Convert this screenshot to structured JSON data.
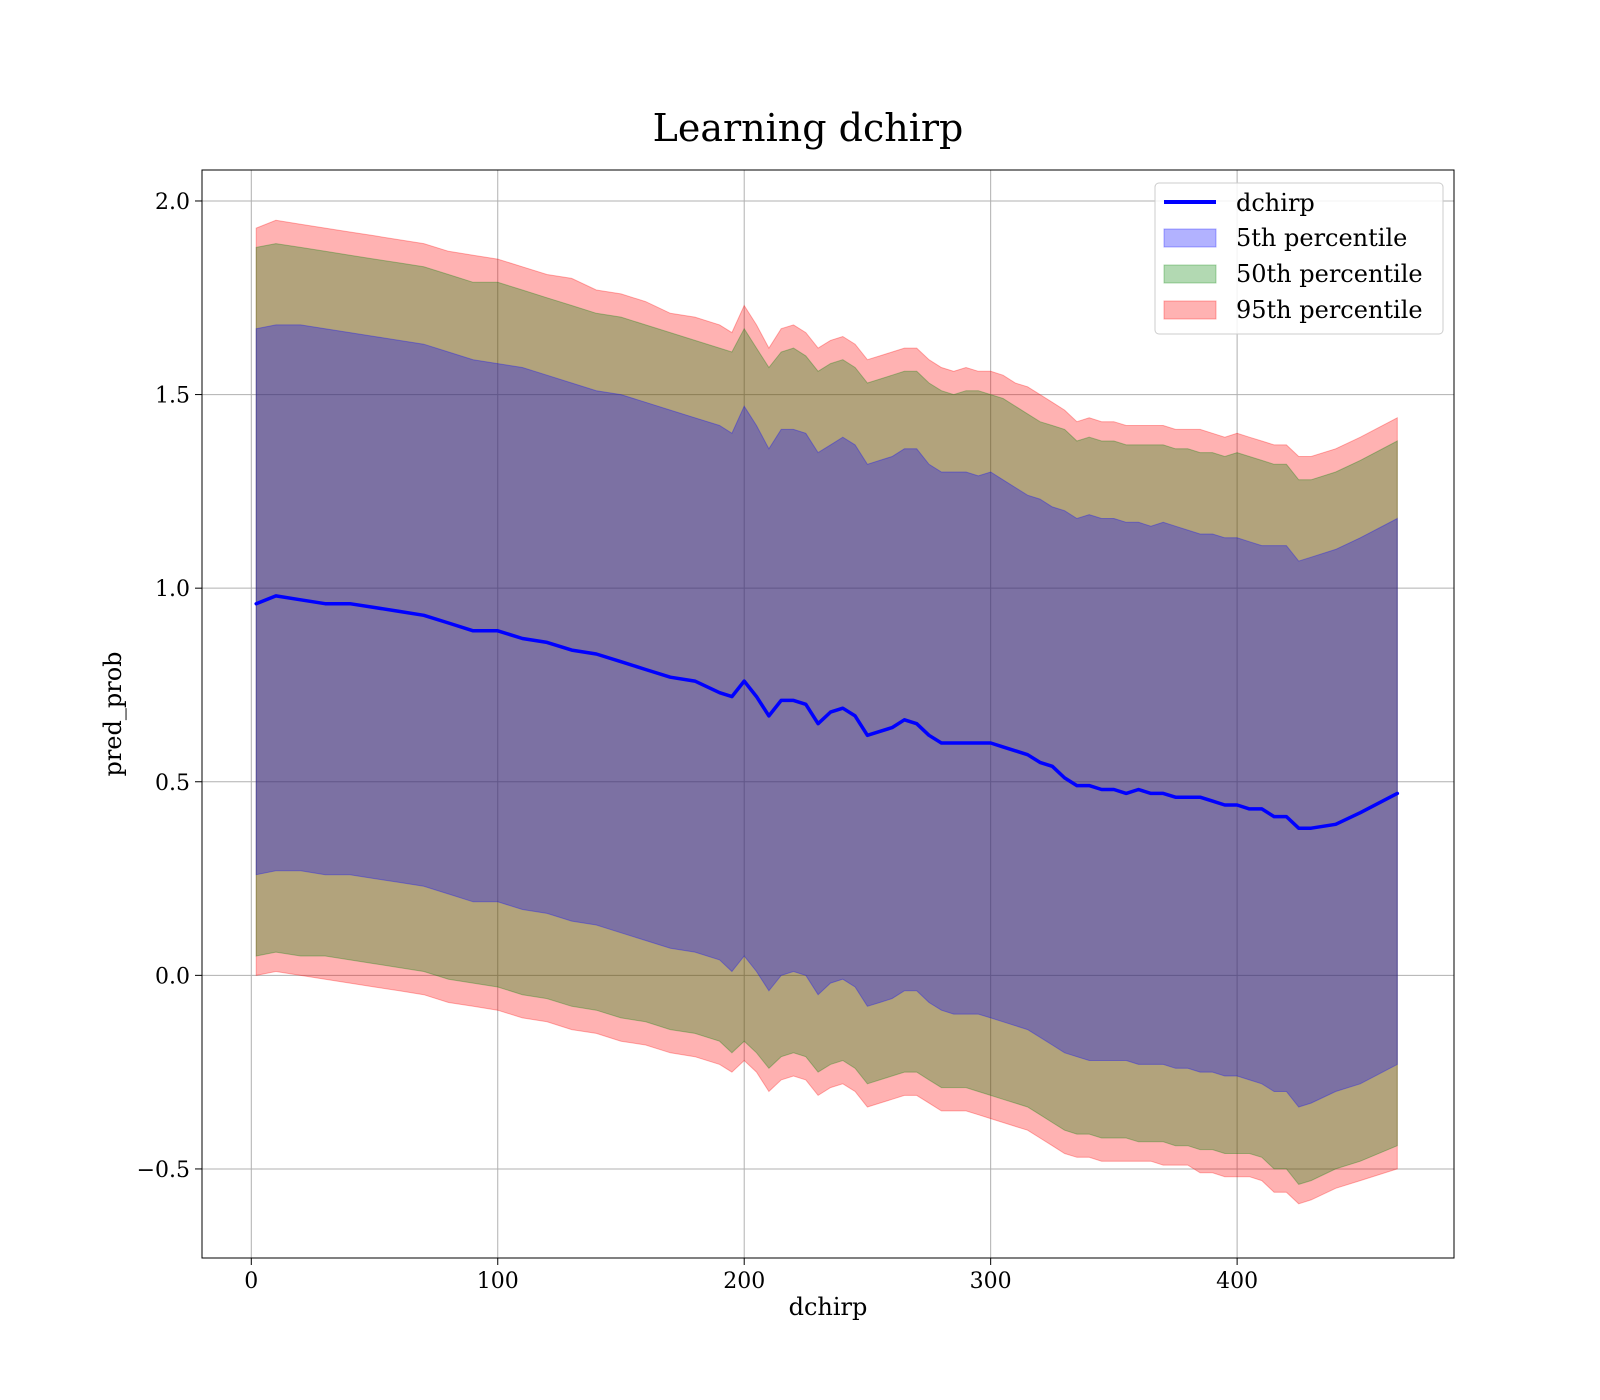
{
  "chart_data": {
    "type": "area",
    "title": "Learning dchirp",
    "xlabel": "dchirp",
    "ylabel": "pred_prob",
    "xlim": [
      -20,
      488
    ],
    "ylim": [
      -0.73,
      2.08
    ],
    "xticks": [
      0,
      100,
      200,
      300,
      400
    ],
    "yticks": [
      -0.5,
      0.0,
      0.5,
      1.0,
      1.5,
      2.0
    ],
    "xtick_labels": [
      "0",
      "100",
      "200",
      "300",
      "400"
    ],
    "ytick_labels": [
      "−0.5",
      "0.0",
      "0.5",
      "1.0",
      "1.5",
      "2.0"
    ],
    "grid": true,
    "legend_position": "top-right",
    "line": {
      "name": "dchirp",
      "color": "#0000ff",
      "x": [
        2,
        10,
        20,
        30,
        40,
        50,
        60,
        70,
        80,
        90,
        100,
        110,
        120,
        130,
        140,
        150,
        160,
        170,
        180,
        190,
        195,
        200,
        205,
        210,
        215,
        220,
        225,
        230,
        235,
        240,
        245,
        250,
        255,
        260,
        265,
        270,
        275,
        280,
        285,
        290,
        295,
        300,
        305,
        310,
        315,
        320,
        325,
        330,
        335,
        340,
        345,
        350,
        355,
        360,
        365,
        370,
        375,
        380,
        385,
        390,
        395,
        400,
        405,
        410,
        415,
        420,
        425,
        430,
        440,
        450,
        465
      ],
      "y": [
        0.96,
        0.98,
        0.97,
        0.96,
        0.96,
        0.95,
        0.94,
        0.93,
        0.91,
        0.89,
        0.89,
        0.87,
        0.86,
        0.84,
        0.83,
        0.81,
        0.79,
        0.77,
        0.76,
        0.73,
        0.72,
        0.76,
        0.72,
        0.67,
        0.71,
        0.71,
        0.7,
        0.65,
        0.68,
        0.69,
        0.67,
        0.62,
        0.63,
        0.64,
        0.66,
        0.65,
        0.62,
        0.6,
        0.6,
        0.6,
        0.6,
        0.6,
        0.59,
        0.58,
        0.57,
        0.55,
        0.54,
        0.51,
        0.49,
        0.49,
        0.48,
        0.48,
        0.47,
        0.48,
        0.47,
        0.47,
        0.46,
        0.46,
        0.46,
        0.45,
        0.44,
        0.44,
        0.43,
        0.43,
        0.41,
        0.41,
        0.38,
        0.38,
        0.39,
        0.42,
        0.47
      ]
    },
    "bands": [
      {
        "name": "95th percentile",
        "color": "#ff0000",
        "opacity": 0.3,
        "x": [
          2,
          10,
          20,
          30,
          40,
          50,
          60,
          70,
          80,
          90,
          100,
          110,
          120,
          130,
          140,
          150,
          160,
          170,
          180,
          190,
          195,
          200,
          205,
          210,
          215,
          220,
          225,
          230,
          235,
          240,
          245,
          250,
          255,
          260,
          265,
          270,
          275,
          280,
          285,
          290,
          295,
          300,
          305,
          310,
          315,
          320,
          325,
          330,
          335,
          340,
          345,
          350,
          355,
          360,
          365,
          370,
          375,
          380,
          385,
          390,
          395,
          400,
          405,
          410,
          415,
          420,
          425,
          430,
          440,
          450,
          465
        ],
        "upper": [
          1.93,
          1.95,
          1.94,
          1.93,
          1.92,
          1.91,
          1.9,
          1.89,
          1.87,
          1.86,
          1.85,
          1.83,
          1.81,
          1.8,
          1.77,
          1.76,
          1.74,
          1.71,
          1.7,
          1.68,
          1.66,
          1.73,
          1.68,
          1.62,
          1.67,
          1.68,
          1.66,
          1.62,
          1.64,
          1.65,
          1.63,
          1.59,
          1.6,
          1.61,
          1.62,
          1.62,
          1.59,
          1.57,
          1.56,
          1.57,
          1.56,
          1.56,
          1.55,
          1.53,
          1.52,
          1.5,
          1.48,
          1.46,
          1.43,
          1.44,
          1.43,
          1.43,
          1.42,
          1.42,
          1.42,
          1.42,
          1.41,
          1.41,
          1.41,
          1.4,
          1.39,
          1.4,
          1.39,
          1.38,
          1.37,
          1.37,
          1.34,
          1.34,
          1.36,
          1.39,
          1.44
        ],
        "lower": [
          0.0,
          0.01,
          0.0,
          -0.01,
          -0.02,
          -0.03,
          -0.04,
          -0.05,
          -0.07,
          -0.08,
          -0.09,
          -0.11,
          -0.12,
          -0.14,
          -0.15,
          -0.17,
          -0.18,
          -0.2,
          -0.21,
          -0.23,
          -0.25,
          -0.22,
          -0.25,
          -0.3,
          -0.27,
          -0.26,
          -0.27,
          -0.31,
          -0.29,
          -0.28,
          -0.3,
          -0.34,
          -0.33,
          -0.32,
          -0.31,
          -0.31,
          -0.33,
          -0.35,
          -0.35,
          -0.35,
          -0.36,
          -0.37,
          -0.38,
          -0.39,
          -0.4,
          -0.42,
          -0.44,
          -0.46,
          -0.47,
          -0.47,
          -0.48,
          -0.48,
          -0.48,
          -0.48,
          -0.48,
          -0.49,
          -0.49,
          -0.49,
          -0.51,
          -0.51,
          -0.52,
          -0.52,
          -0.52,
          -0.53,
          -0.56,
          -0.56,
          -0.59,
          -0.58,
          -0.55,
          -0.53,
          -0.5
        ]
      },
      {
        "name": "50th percentile",
        "color": "#008000",
        "opacity": 0.3,
        "x": [
          2,
          10,
          20,
          30,
          40,
          50,
          60,
          70,
          80,
          90,
          100,
          110,
          120,
          130,
          140,
          150,
          160,
          170,
          180,
          190,
          195,
          200,
          205,
          210,
          215,
          220,
          225,
          230,
          235,
          240,
          245,
          250,
          255,
          260,
          265,
          270,
          275,
          280,
          285,
          290,
          295,
          300,
          305,
          310,
          315,
          320,
          325,
          330,
          335,
          340,
          345,
          350,
          355,
          360,
          365,
          370,
          375,
          380,
          385,
          390,
          395,
          400,
          405,
          410,
          415,
          420,
          425,
          430,
          440,
          450,
          465
        ],
        "upper": [
          1.88,
          1.89,
          1.88,
          1.87,
          1.86,
          1.85,
          1.84,
          1.83,
          1.81,
          1.79,
          1.79,
          1.77,
          1.75,
          1.73,
          1.71,
          1.7,
          1.68,
          1.66,
          1.64,
          1.62,
          1.61,
          1.67,
          1.62,
          1.57,
          1.61,
          1.62,
          1.6,
          1.56,
          1.58,
          1.59,
          1.57,
          1.53,
          1.54,
          1.55,
          1.56,
          1.56,
          1.53,
          1.51,
          1.5,
          1.51,
          1.51,
          1.5,
          1.49,
          1.47,
          1.45,
          1.43,
          1.42,
          1.41,
          1.38,
          1.39,
          1.38,
          1.38,
          1.37,
          1.37,
          1.37,
          1.37,
          1.36,
          1.36,
          1.35,
          1.35,
          1.34,
          1.35,
          1.34,
          1.33,
          1.32,
          1.32,
          1.28,
          1.28,
          1.3,
          1.33,
          1.38
        ],
        "lower": [
          0.05,
          0.06,
          0.05,
          0.05,
          0.04,
          0.03,
          0.02,
          0.01,
          -0.01,
          -0.02,
          -0.03,
          -0.05,
          -0.06,
          -0.08,
          -0.09,
          -0.11,
          -0.12,
          -0.14,
          -0.15,
          -0.17,
          -0.2,
          -0.17,
          -0.2,
          -0.24,
          -0.21,
          -0.2,
          -0.21,
          -0.25,
          -0.23,
          -0.22,
          -0.24,
          -0.28,
          -0.27,
          -0.26,
          -0.25,
          -0.25,
          -0.27,
          -0.29,
          -0.29,
          -0.29,
          -0.3,
          -0.31,
          -0.32,
          -0.33,
          -0.34,
          -0.36,
          -0.38,
          -0.4,
          -0.41,
          -0.41,
          -0.42,
          -0.42,
          -0.42,
          -0.43,
          -0.43,
          -0.43,
          -0.44,
          -0.44,
          -0.45,
          -0.45,
          -0.46,
          -0.46,
          -0.46,
          -0.47,
          -0.5,
          -0.5,
          -0.54,
          -0.53,
          -0.5,
          -0.48,
          -0.44
        ]
      },
      {
        "name": "5th percentile",
        "color": "#0000ff",
        "opacity": 0.3,
        "x": [
          2,
          10,
          20,
          30,
          40,
          50,
          60,
          70,
          80,
          90,
          100,
          110,
          120,
          130,
          140,
          150,
          160,
          170,
          180,
          190,
          195,
          200,
          205,
          210,
          215,
          220,
          225,
          230,
          235,
          240,
          245,
          250,
          255,
          260,
          265,
          270,
          275,
          280,
          285,
          290,
          295,
          300,
          305,
          310,
          315,
          320,
          325,
          330,
          335,
          340,
          345,
          350,
          355,
          360,
          365,
          370,
          375,
          380,
          385,
          390,
          395,
          400,
          405,
          410,
          415,
          420,
          425,
          430,
          440,
          450,
          465
        ],
        "upper": [
          1.67,
          1.68,
          1.68,
          1.67,
          1.66,
          1.65,
          1.64,
          1.63,
          1.61,
          1.59,
          1.58,
          1.57,
          1.55,
          1.53,
          1.51,
          1.5,
          1.48,
          1.46,
          1.44,
          1.42,
          1.4,
          1.47,
          1.42,
          1.36,
          1.41,
          1.41,
          1.4,
          1.35,
          1.37,
          1.39,
          1.37,
          1.32,
          1.33,
          1.34,
          1.36,
          1.36,
          1.32,
          1.3,
          1.3,
          1.3,
          1.29,
          1.3,
          1.28,
          1.26,
          1.24,
          1.23,
          1.21,
          1.2,
          1.18,
          1.19,
          1.18,
          1.18,
          1.17,
          1.17,
          1.16,
          1.17,
          1.16,
          1.15,
          1.14,
          1.14,
          1.13,
          1.13,
          1.12,
          1.11,
          1.11,
          1.11,
          1.07,
          1.08,
          1.1,
          1.13,
          1.18
        ],
        "lower": [
          0.26,
          0.27,
          0.27,
          0.26,
          0.26,
          0.25,
          0.24,
          0.23,
          0.21,
          0.19,
          0.19,
          0.17,
          0.16,
          0.14,
          0.13,
          0.11,
          0.09,
          0.07,
          0.06,
          0.04,
          0.01,
          0.05,
          0.01,
          -0.04,
          0.0,
          0.01,
          0.0,
          -0.05,
          -0.02,
          -0.01,
          -0.03,
          -0.08,
          -0.07,
          -0.06,
          -0.04,
          -0.04,
          -0.07,
          -0.09,
          -0.1,
          -0.1,
          -0.1,
          -0.11,
          -0.12,
          -0.13,
          -0.14,
          -0.16,
          -0.18,
          -0.2,
          -0.21,
          -0.22,
          -0.22,
          -0.22,
          -0.22,
          -0.23,
          -0.23,
          -0.23,
          -0.24,
          -0.24,
          -0.25,
          -0.25,
          -0.26,
          -0.26,
          -0.27,
          -0.28,
          -0.3,
          -0.3,
          -0.34,
          -0.33,
          -0.3,
          -0.28,
          -0.23
        ]
      }
    ],
    "legend": [
      {
        "label": "dchirp",
        "kind": "line",
        "color": "#0000ff"
      },
      {
        "label": "5th percentile",
        "kind": "patch",
        "color": "#0000ff"
      },
      {
        "label": "50th percentile",
        "kind": "patch",
        "color": "#008000"
      },
      {
        "label": "95th percentile",
        "kind": "patch",
        "color": "#ff0000"
      }
    ]
  }
}
